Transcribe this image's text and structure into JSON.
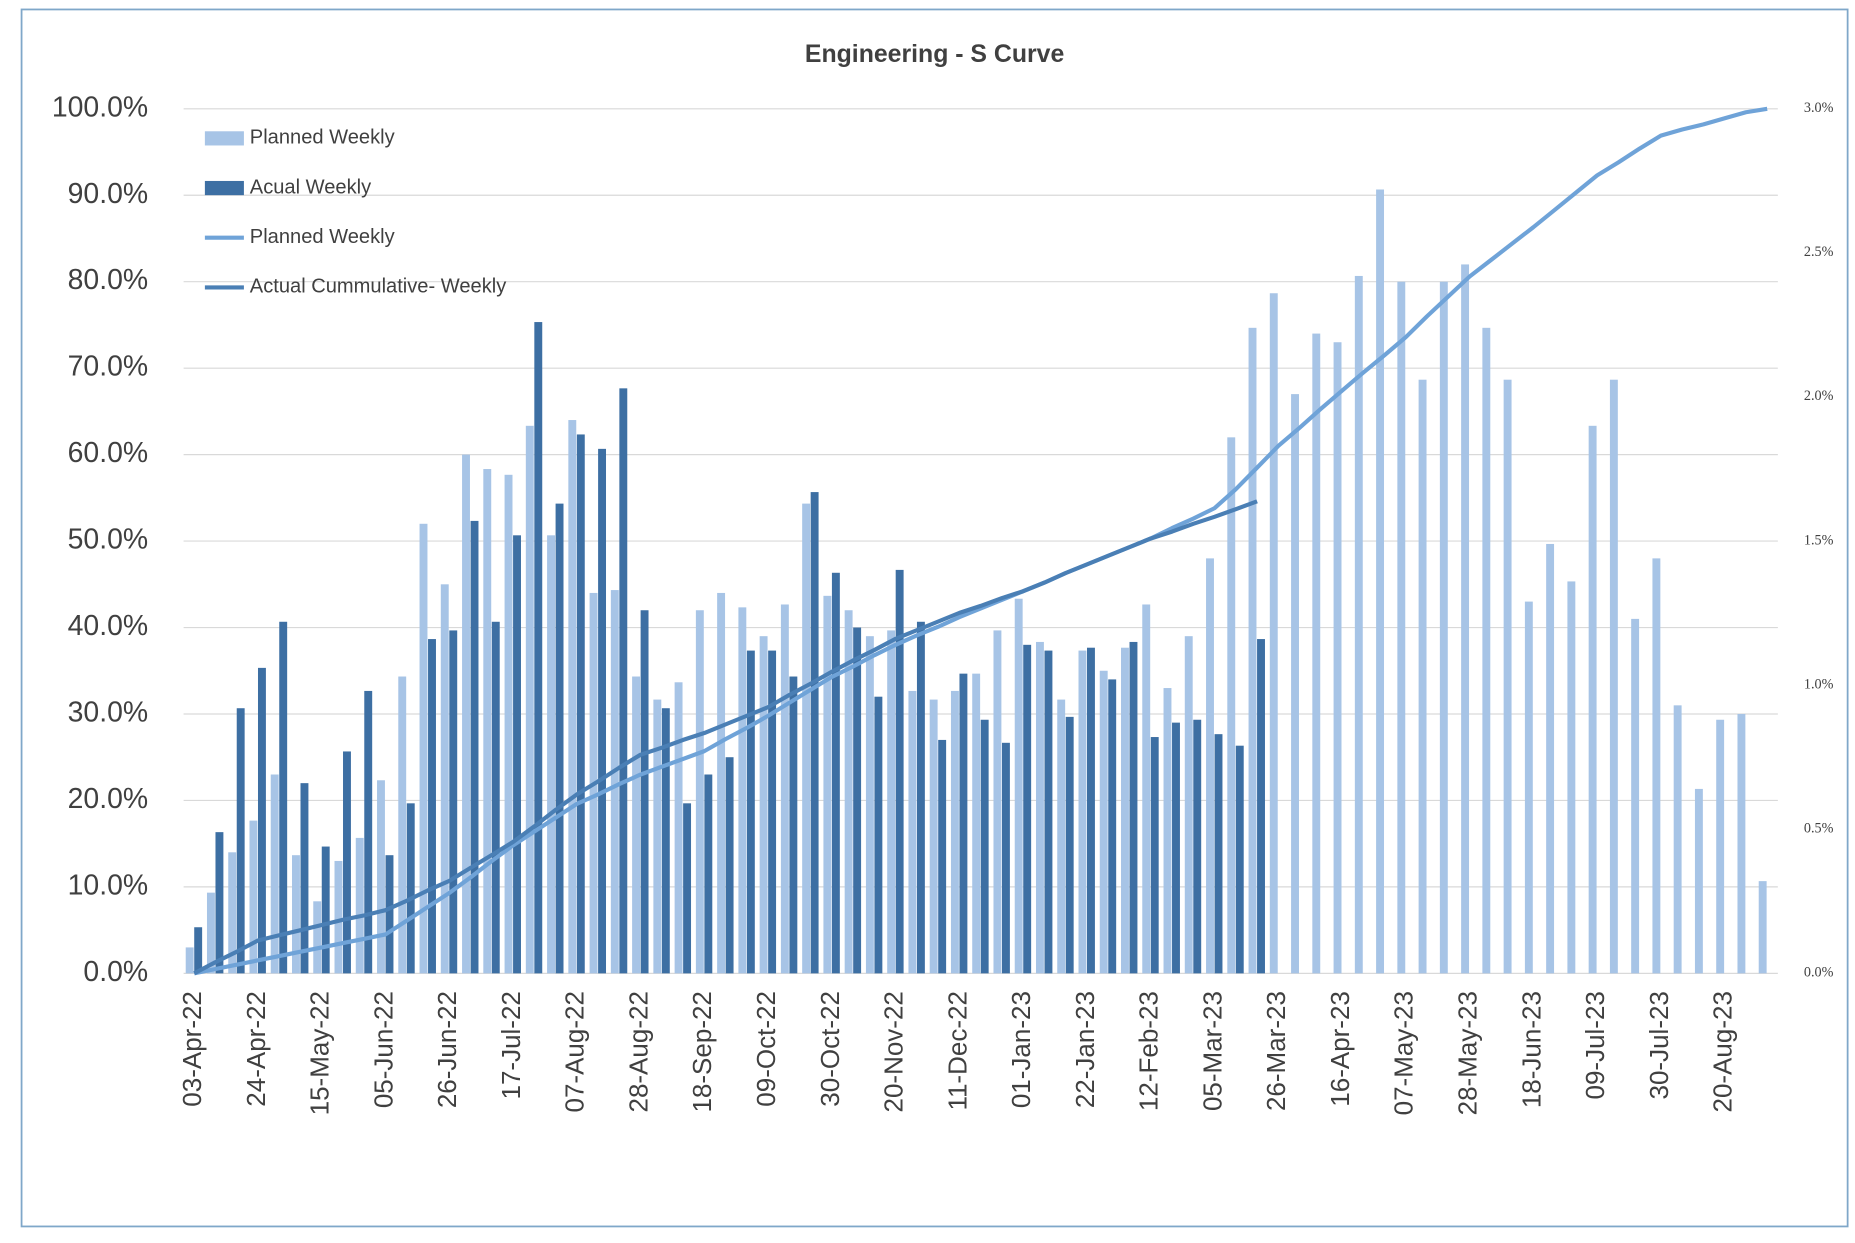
{
  "chart_data": {
    "type": "combo",
    "title": "Engineering - S Curve",
    "categories": [
      "03-Apr-22",
      null,
      null,
      "24-Apr-22",
      null,
      null,
      "15-May-22",
      null,
      null,
      "05-Jun-22",
      null,
      null,
      "26-Jun-22",
      null,
      null,
      "17-Jul-22",
      null,
      null,
      "07-Aug-22",
      null,
      null,
      "28-Aug-22",
      null,
      null,
      "18-Sep-22",
      null,
      null,
      "09-Oct-22",
      null,
      null,
      "30-Oct-22",
      null,
      null,
      "20-Nov-22",
      null,
      null,
      "11-Dec-22",
      null,
      null,
      "01-Jan-23",
      null,
      null,
      "22-Jan-23",
      null,
      null,
      "12-Feb-23",
      null,
      null,
      "05-Mar-23",
      null,
      null,
      "26-Mar-23",
      null,
      null,
      "16-Apr-23",
      null,
      null,
      "07-May-23",
      null,
      null,
      "28-May-23",
      null,
      null,
      "18-Jun-23",
      null,
      null,
      "09-Jul-23",
      null,
      null,
      "30-Jul-23",
      null,
      null,
      "20-Aug-23",
      null,
      null
    ],
    "ylim": [
      0,
      100
    ],
    "yticks": [
      {
        "value": 0,
        "label": "0.0%"
      },
      {
        "value": 10,
        "label": "10.0%"
      },
      {
        "value": 20,
        "label": "20.0%"
      },
      {
        "value": 30,
        "label": "30.0%"
      },
      {
        "value": 40,
        "label": "40.0%"
      },
      {
        "value": 50,
        "label": "50.0%"
      },
      {
        "value": 60,
        "label": "60.0%"
      },
      {
        "value": 70,
        "label": "70.0%"
      },
      {
        "value": 80,
        "label": "80.0%"
      },
      {
        "value": 90,
        "label": "90.0%"
      },
      {
        "value": 100,
        "label": "100.0%"
      }
    ],
    "y2lim": [
      0,
      3
    ],
    "y2ticks": [
      {
        "value": 0,
        "label": "0.0%"
      },
      {
        "value": 0.5,
        "label": "0.5%"
      },
      {
        "value": 1,
        "label": "1.0%"
      },
      {
        "value": 1.5,
        "label": "1.5%"
      },
      {
        "value": 2,
        "label": "2.0%"
      },
      {
        "value": 2.5,
        "label": "2.5%"
      },
      {
        "value": 3,
        "label": "3.0%"
      }
    ],
    "grid": true,
    "legend": "upper left",
    "series": [
      {
        "name": "Planned  Weekly",
        "type": "bar",
        "axis": "y2",
        "color": "#a7c4e6",
        "values": [
          0.09,
          0.28,
          0.42,
          0.53,
          0.69,
          0.41,
          0.25,
          0.39,
          0.47,
          0.67,
          1.03,
          1.56,
          1.35,
          1.8,
          1.75,
          1.73,
          1.9,
          1.52,
          1.92,
          1.32,
          1.33,
          1.03,
          0.95,
          1.01,
          1.26,
          1.32,
          1.27,
          1.17,
          1.28,
          1.63,
          1.31,
          1.26,
          1.17,
          1.19,
          0.98,
          0.95,
          0.98,
          1.04,
          1.19,
          1.3,
          1.15,
          0.95,
          1.12,
          1.05,
          1.13,
          1.28,
          0.99,
          1.17,
          1.44,
          1.86,
          2.24,
          2.36,
          2.01,
          2.22,
          2.19,
          2.42,
          2.72,
          2.4,
          2.06,
          2.4,
          2.46,
          2.24,
          2.06,
          1.29,
          1.49,
          1.36,
          1.9,
          2.06,
          1.23,
          1.44,
          0.93,
          0.64,
          0.88,
          0.9,
          0.32
        ]
      },
      {
        "name": "Acual Weekly",
        "type": "bar",
        "axis": "y2",
        "color": "#3d6fa3",
        "values": [
          0.16,
          0.49,
          0.92,
          1.06,
          1.22,
          0.66,
          0.44,
          0.77,
          0.98,
          0.41,
          0.59,
          1.16,
          1.19,
          1.57,
          1.22,
          1.52,
          2.26,
          1.63,
          1.87,
          1.82,
          2.03,
          1.26,
          0.92,
          0.59,
          0.69,
          0.75,
          1.12,
          1.12,
          1.03,
          1.67,
          1.39,
          1.2,
          0.96,
          1.4,
          1.22,
          0.81,
          1.04,
          0.88,
          0.8,
          1.14,
          1.12,
          0.89,
          1.13,
          1.02,
          1.15,
          0.82,
          0.87,
          0.88,
          0.83,
          0.79,
          1.16,
          null,
          null,
          null,
          null,
          null,
          null,
          null,
          null,
          null,
          null,
          null,
          null,
          null,
          null,
          null,
          null,
          null,
          null,
          null,
          null,
          null,
          null,
          null,
          null
        ]
      },
      {
        "name": "Planned  Weekly",
        "type": "line",
        "color": "#6fa3d8",
        "values": [
          0,
          0.5,
          1.0,
          1.5,
          2.0,
          2.5,
          3.0,
          3.5,
          4.0,
          4.5,
          6.1,
          7.7,
          9.3,
          11.1,
          13.0,
          14.8,
          16.4,
          18.0,
          19.6,
          20.7,
          21.9,
          23.0,
          23.9,
          24.8,
          25.7,
          27.1,
          28.4,
          29.8,
          31.3,
          32.8,
          34.3,
          35.5,
          36.8,
          38.0,
          39.1,
          40.1,
          41.2,
          42.2,
          43.2,
          44.2,
          45.2,
          46.3,
          47.3,
          48.3,
          49.3,
          50.3,
          51.5,
          52.6,
          53.8,
          56.0,
          58.5,
          61.0,
          63.1,
          65.3,
          67.4,
          69.5,
          71.5,
          73.6,
          76.0,
          78.3,
          80.6,
          82.5,
          84.4,
          86.3,
          88.3,
          90.3,
          92.3,
          93.8,
          95.4,
          96.9,
          97.6,
          98.2,
          98.9,
          99.6,
          100
        ]
      },
      {
        "name": "Actual Cummulative- Weekly",
        "type": "line",
        "color": "#4a7fb5",
        "values": [
          0,
          1.3,
          2.5,
          3.8,
          4.4,
          5.0,
          5.6,
          6.2,
          6.7,
          7.3,
          8.4,
          9.6,
          10.7,
          12.2,
          13.7,
          15.2,
          17.0,
          18.9,
          20.7,
          22.2,
          23.8,
          25.3,
          26.1,
          27.0,
          27.8,
          28.8,
          29.8,
          30.8,
          32.2,
          33.5,
          34.9,
          36.2,
          37.4,
          38.7,
          39.7,
          40.7,
          41.7,
          42.5,
          43.4,
          44.2,
          45.2,
          46.3,
          47.3,
          48.3,
          49.3,
          50.3,
          51.1,
          52.0,
          52.8,
          53.7,
          54.6,
          null,
          null,
          null,
          null,
          null,
          null,
          null,
          null,
          null,
          null,
          null,
          null,
          null,
          null,
          null,
          null,
          null,
          null,
          null,
          null,
          null,
          null,
          null,
          null
        ]
      }
    ]
  }
}
